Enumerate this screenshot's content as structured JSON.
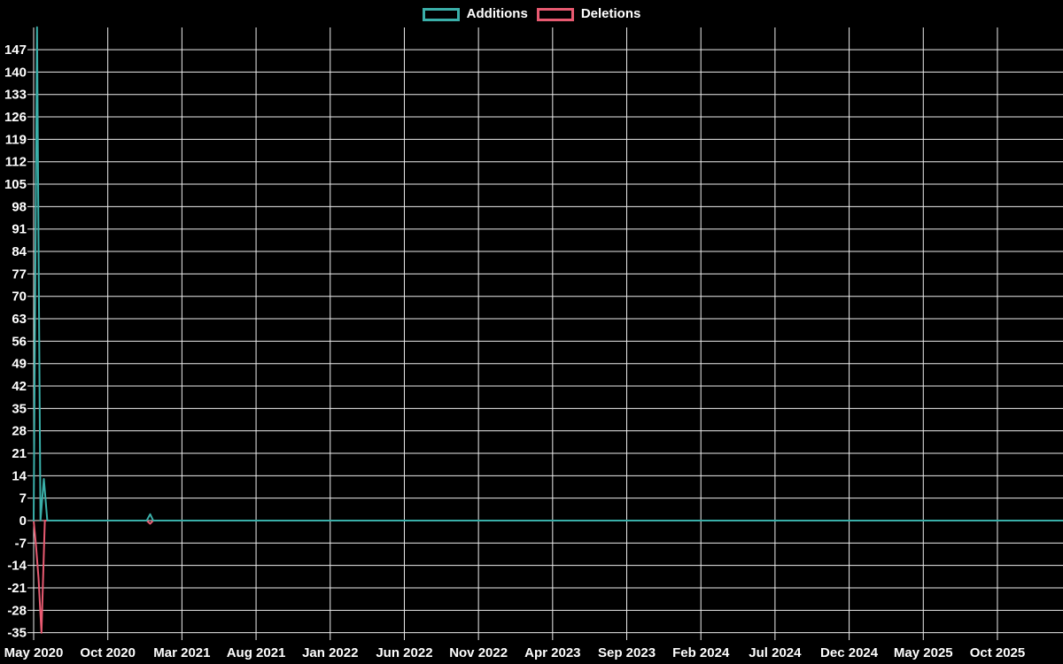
{
  "legend": {
    "items": [
      {
        "label": "Additions",
        "color": "#3aafa9"
      },
      {
        "label": "Deletions",
        "color": "#e85a71"
      }
    ]
  },
  "chart_data": {
    "type": "line",
    "title": "",
    "xlabel": "",
    "ylabel": "",
    "background": "#000000",
    "grid": {
      "on": true,
      "color": "#ededed"
    },
    "text_color": "#ffffff",
    "legend_position": "top-center",
    "x_axis": {
      "type": "time",
      "start": "2020-05-01",
      "tick_interval_months": 5,
      "tick_labels": [
        "May 2020",
        "Oct 2020",
        "Mar 2021",
        "Aug 2021",
        "Jan 2022",
        "Jun 2022",
        "Nov 2022",
        "Apr 2023",
        "Sep 2023",
        "Feb 2024",
        "Jul 2024",
        "Dec 2024",
        "May 2025",
        "Oct 2025"
      ]
    },
    "y_axis": {
      "tick_step": 7,
      "ticks": [
        147,
        140,
        133,
        126,
        119,
        112,
        105,
        98,
        91,
        84,
        77,
        70,
        63,
        56,
        49,
        42,
        35,
        28,
        21,
        14,
        7,
        0,
        -7,
        -14,
        -21,
        -28,
        -35
      ],
      "ylim": [
        -37,
        154
      ]
    },
    "series": [
      {
        "name": "Additions",
        "color": "#3aafa9",
        "points": [
          [
            "2020-05-01",
            0
          ],
          [
            "2020-05-08",
            154
          ],
          [
            "2020-05-15",
            0
          ],
          [
            "2020-05-22",
            13
          ],
          [
            "2020-05-29",
            0
          ],
          [
            "2020-12-20",
            0
          ],
          [
            "2020-12-27",
            2
          ],
          [
            "2021-01-03",
            0
          ],
          [
            "2026-02-13",
            0
          ]
        ]
      },
      {
        "name": "Deletions",
        "color": "#e85a71",
        "points": [
          [
            "2020-05-01",
            0
          ],
          [
            "2020-05-06",
            -8
          ],
          [
            "2020-05-11",
            -18
          ],
          [
            "2020-05-17",
            -35
          ],
          [
            "2020-05-24",
            0
          ],
          [
            "2020-12-20",
            0
          ],
          [
            "2020-12-27",
            -1
          ],
          [
            "2021-01-03",
            0
          ],
          [
            "2026-02-13",
            0
          ]
        ]
      }
    ]
  }
}
